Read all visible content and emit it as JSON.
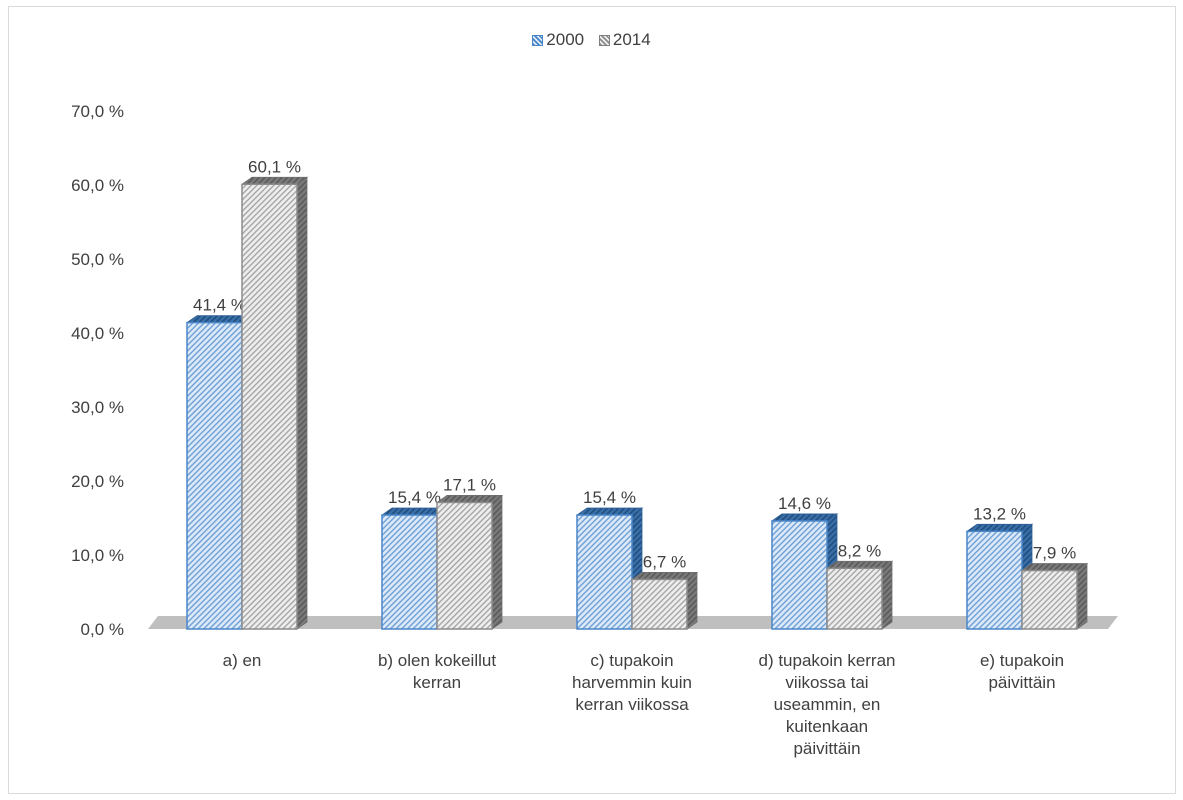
{
  "chart_data": {
    "type": "bar",
    "categories": [
      "a) en",
      "b) olen kokeillut kerran",
      "c)  tupakoin harvemmin kuin kerran viikossa",
      "d) tupakoin kerran viikossa tai useammin, en kuitenkaan päivittäin",
      "e) tupakoin päivittäin"
    ],
    "category_lines": [
      [
        "a) en"
      ],
      [
        "b) olen kokeillut",
        "kerran"
      ],
      [
        "c)  tupakoin",
        "harvemmin kuin",
        "kerran viikossa"
      ],
      [
        "d) tupakoin kerran",
        "viikossa tai",
        "useammin, en",
        "kuitenkaan",
        "päivittäin"
      ],
      [
        "e) tupakoin",
        "päivittäin"
      ]
    ],
    "series": [
      {
        "name": "2000",
        "values": [
          41.4,
          15.4,
          15.4,
          14.6,
          13.2
        ],
        "labels": [
          "41,4 %",
          "15,4 %",
          "15,4 %",
          "14,6 %",
          "13,2 %"
        ],
        "color": "#4a86c8",
        "fill": "#dbe9f8"
      },
      {
        "name": "2014",
        "values": [
          60.1,
          17.1,
          6.7,
          8.2,
          7.9
        ],
        "labels": [
          "60,1 %",
          "17,1 %",
          "6,7 %",
          "8,2 %",
          "7,9 %"
        ],
        "color": "#8c8c8c",
        "fill": "#eeeeee"
      }
    ],
    "yticks": [
      "0,0 %",
      "10,0 %",
      "20,0 %",
      "30,0 %",
      "40,0 %",
      "50,0 %",
      "60,0 %",
      "70,0 %"
    ],
    "ylim": [
      0,
      70
    ],
    "title": "",
    "xlabel": "",
    "ylabel": "",
    "grid": false,
    "legend_position": "top-center",
    "style": "3d-column-hatched"
  }
}
